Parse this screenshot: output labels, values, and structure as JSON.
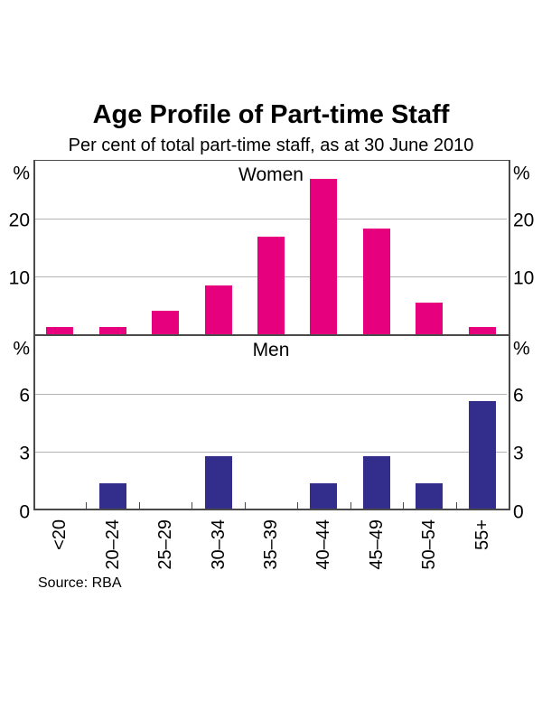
{
  "chart_data": {
    "type": "bar",
    "title": "Age Profile of Part-time Staff",
    "subtitle": "Per cent of total part-time staff, as at 30 June 2010",
    "source": "Source: RBA",
    "categories": [
      "<20",
      "20–24",
      "25–29",
      "30–34",
      "35–39",
      "40–44",
      "45–49",
      "50–54",
      "55+"
    ],
    "layout": {
      "grid": "horizontal",
      "legend": "none",
      "two_panel": true,
      "axis_unit_marker": "%",
      "frame_color": "#4a4a4a",
      "gridline_color": "#b4b4b4"
    },
    "panels": [
      {
        "label": "Women",
        "unit": "%",
        "ylim": [
          0,
          30
        ],
        "ticks": [
          20,
          10
        ],
        "color": "#E6007E",
        "values": [
          1.4,
          1.4,
          4.2,
          8.5,
          16.9,
          26.8,
          18.3,
          5.6,
          1.4
        ]
      },
      {
        "label": "Men",
        "unit": "%",
        "ylim": [
          0,
          9
        ],
        "ticks": [
          6,
          3,
          0
        ],
        "color": "#332E8C",
        "values": [
          0,
          1.4,
          0,
          2.8,
          0,
          1.4,
          2.8,
          1.4,
          5.6
        ]
      }
    ]
  }
}
